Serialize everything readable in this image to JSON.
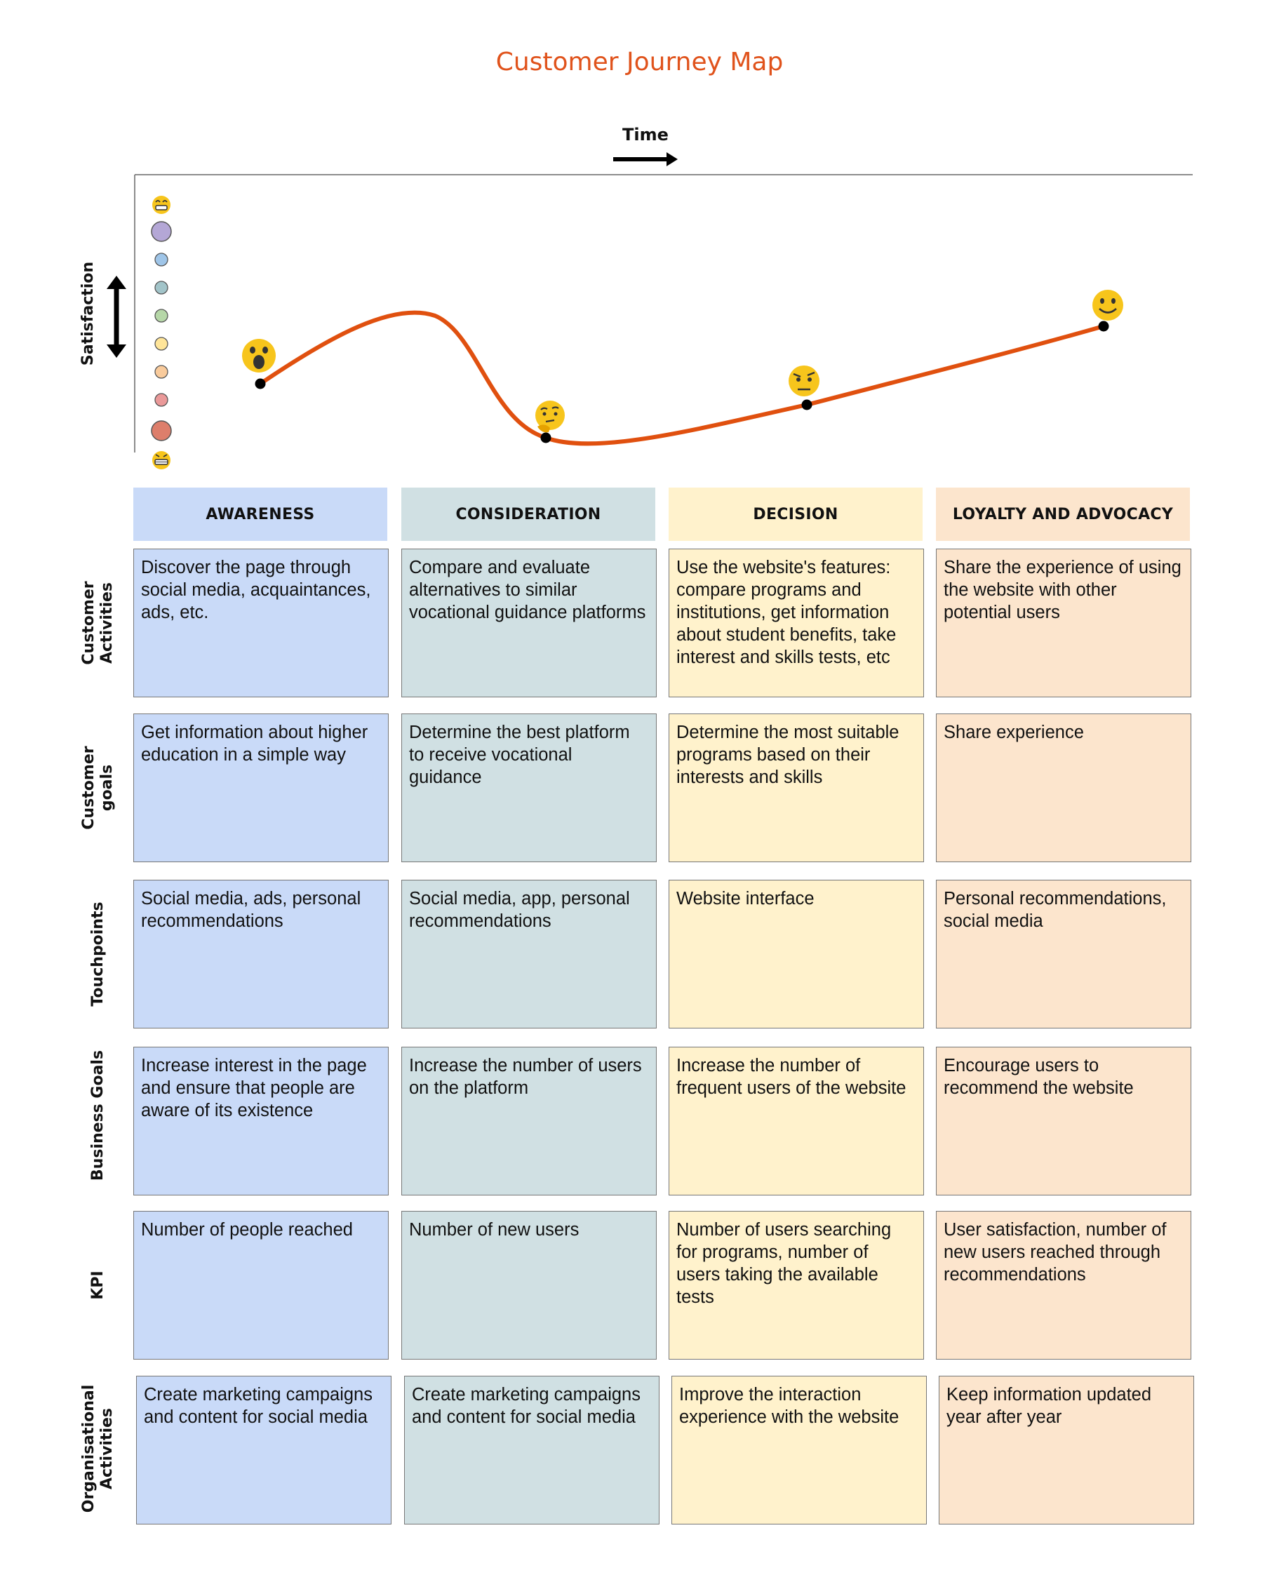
{
  "title": "Customer Journey Map",
  "time_label": "Time",
  "satisfaction_label": "Satisfaction",
  "colors": {
    "title": "#e0531c",
    "curve": "#e0500f",
    "awareness": "#c9daf8",
    "consideration": "#d0e0e3",
    "decision": "#fff2cc",
    "loyalty": "#fce5cd"
  },
  "stages": [
    "AWARENESS",
    "CONSIDERATION",
    "DECISION",
    "LOYALTY AND ADVOCACY"
  ],
  "curve_emojis": [
    "astonished-face",
    "thinking-face",
    "raised-eyebrow-face",
    "slightly-smiling-face"
  ],
  "scale_markers": [
    "grinning-face",
    "purple",
    "blue",
    "teal",
    "green",
    "yellow",
    "orange",
    "pink",
    "red",
    "grimacing-face"
  ],
  "rows": [
    {
      "label": "Customer\nActivities",
      "cells": [
        "Discover the page through social media, acquaintances, ads, etc.",
        "Compare and evaluate alternatives to similar vocational guidance platforms",
        "Use the website's features: compare programs and institutions, get information about student benefits, take interest and skills tests, etc",
        "Share the experience of using the website with other potential users"
      ]
    },
    {
      "label": "Customer\ngoals",
      "cells": [
        "Get information about higher education in a simple way",
        "Determine the best platform to receive vocational guidance",
        "Determine the most suitable programs based on their interests and skills",
        "Share experience"
      ]
    },
    {
      "label": "Touchpoints",
      "cells": [
        "Social media, ads, personal recommendations",
        "Social media, app, personal recommendations",
        "Website interface",
        "Personal recommendations, social media"
      ]
    },
    {
      "label": "Business Goals",
      "cells": [
        "Increase interest in the page and ensure that people are aware of its existence",
        "Increase the number of users on the platform",
        "Increase the number of frequent users of the website",
        "Encourage users to recommend the website"
      ]
    },
    {
      "label": "KPI",
      "cells": [
        "Number of people reached",
        "Number of new users",
        "Number of users searching for programs, number of users taking the available tests",
        "User satisfaction, number of new users reached through recommendations"
      ]
    },
    {
      "label": "Organisational\nActivities",
      "cells": [
        "Create marketing campaigns and content for social media",
        "Create marketing campaigns and content for social media",
        "Improve the interaction experience with the website",
        "Keep information updated year after year"
      ]
    }
  ]
}
